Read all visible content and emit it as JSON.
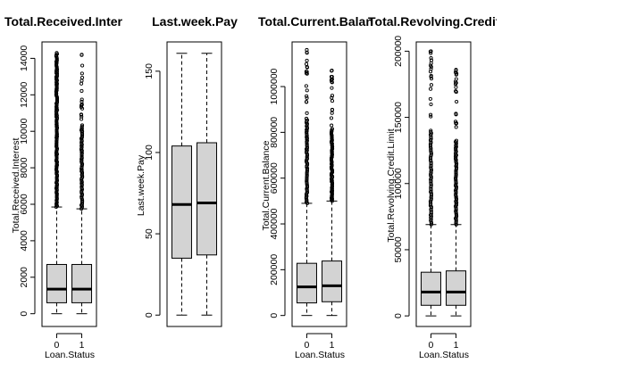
{
  "chart_data": [
    {
      "type": "boxplot",
      "title": "Total.Received.Interest",
      "ylabel": "Total.Received.Interest",
      "xlabel": "Loan.Status",
      "categories": [
        "0",
        "1"
      ],
      "ylim": [
        -700,
        14900
      ],
      "yticks": [
        0,
        2000,
        4000,
        6000,
        8000,
        10000,
        12000,
        14000
      ],
      "yticklabels": [
        "0",
        "2000",
        "4000",
        "6000",
        "8000",
        "10000",
        "12000",
        "14000"
      ],
      "boxes": [
        {
          "category": "0",
          "whisker_low": 0,
          "q1": 600,
          "median": 1350,
          "q3": 2700,
          "whisker_high": 5850,
          "outlier_max": 14300
        },
        {
          "category": "1",
          "whisker_low": 0,
          "q1": 600,
          "median": 1350,
          "q3": 2700,
          "whisker_high": 5750,
          "outlier_max": 14200
        }
      ]
    },
    {
      "type": "boxplot",
      "title": "Last.week.Pay",
      "ylabel": "Last.week.Pay",
      "xlabel": "",
      "categories": [],
      "ylim": [
        -7,
        168
      ],
      "yticks": [
        0,
        50,
        100,
        150
      ],
      "yticklabels": [
        "0",
        "50",
        "100",
        "150"
      ],
      "boxes": [
        {
          "category": "0",
          "whisker_low": 0,
          "q1": 35,
          "median": 68,
          "q3": 104,
          "whisker_high": 161,
          "outlier_max": 161
        },
        {
          "category": "1",
          "whisker_low": 0,
          "q1": 37,
          "median": 69,
          "q3": 106,
          "whisker_high": 161,
          "outlier_max": 161
        }
      ]
    },
    {
      "type": "boxplot",
      "title": "Total.Current.Balance",
      "ylabel": "Total.Current.Balance",
      "xlabel": "Loan.Status",
      "categories": [
        "0",
        "1"
      ],
      "ylim": [
        -48000,
        1195000
      ],
      "yticks": [
        0,
        200000,
        400000,
        600000,
        800000,
        1000000
      ],
      "yticklabels": [
        "0",
        "200000",
        "400000",
        "600000",
        "800000",
        "1000000"
      ],
      "boxes": [
        {
          "category": "0",
          "whisker_low": 0,
          "q1": 55000,
          "median": 125000,
          "q3": 228000,
          "whisker_high": 490000,
          "outlier_max": 1160000
        },
        {
          "category": "1",
          "whisker_low": 0,
          "q1": 60000,
          "median": 130000,
          "q3": 238000,
          "whisker_high": 500000,
          "outlier_max": 1070000
        }
      ]
    },
    {
      "type": "boxplot",
      "title": "Total.Revolving.Credit.Limit",
      "ylabel": "Total.Revolving.Credit.Limit",
      "xlabel": "Loan.Status",
      "categories": [
        "0",
        "1"
      ],
      "ylim": [
        -8000,
        207000
      ],
      "yticks": [
        0,
        50000,
        100000,
        150000,
        200000
      ],
      "yticklabels": [
        "0",
        "50000",
        "100000",
        "150000",
        "200000"
      ],
      "boxes": [
        {
          "category": "0",
          "whisker_low": 0,
          "q1": 8000,
          "median": 18000,
          "q3": 33000,
          "whisker_high": 69000,
          "outlier_max": 200000
        },
        {
          "category": "1",
          "whisker_low": 0,
          "q1": 8000,
          "median": 18000,
          "q3": 34000,
          "whisker_high": 69000,
          "outlier_max": 186000
        }
      ]
    }
  ]
}
